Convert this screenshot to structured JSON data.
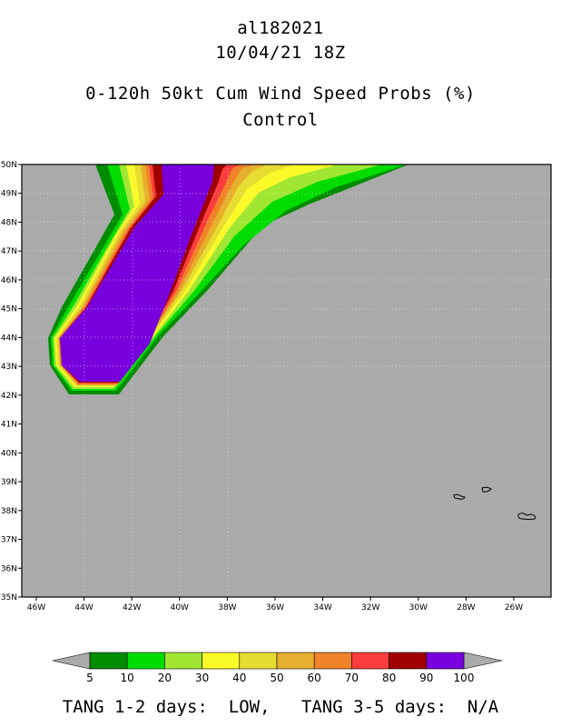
{
  "header": {
    "storm_id": "al182021",
    "datetime": "10/04/21 18Z",
    "title": "0-120h 50kt Cum Wind Speed Probs (%)",
    "subtitle": "Control"
  },
  "map": {
    "lon_range": [
      -46,
      -25
    ],
    "lat_range": [
      35,
      50
    ],
    "lat_labels": [
      "35N",
      "36N",
      "37N",
      "38N",
      "39N",
      "40N",
      "41N",
      "42N",
      "43N",
      "44N",
      "45N",
      "46N",
      "47N",
      "48N",
      "49N",
      "50N"
    ],
    "lon_labels": [
      "46W",
      "44W",
      "42W",
      "40W",
      "38W",
      "36W",
      "34W",
      "32W",
      "30W",
      "28W",
      "26W"
    ],
    "land_color": "#aaaaaa",
    "islands": [
      "Faial/Pico",
      "Terceira",
      "Sao Miguel"
    ]
  },
  "legend": {
    "values": [
      "5",
      "10",
      "20",
      "30",
      "40",
      "50",
      "60",
      "70",
      "80",
      "90",
      "100"
    ],
    "colors": [
      "#008c00",
      "#00dc00",
      "#a0e632",
      "#fafa28",
      "#e6dc32",
      "#e6af2d",
      "#f08228",
      "#fa3c3c",
      "#a00000",
      "#7800dc"
    ],
    "end_color": "#aaaaaa"
  },
  "footer": {
    "text": "TANG 1-2 days:  LOW,   TANG 3-5 days:  N/A"
  }
}
